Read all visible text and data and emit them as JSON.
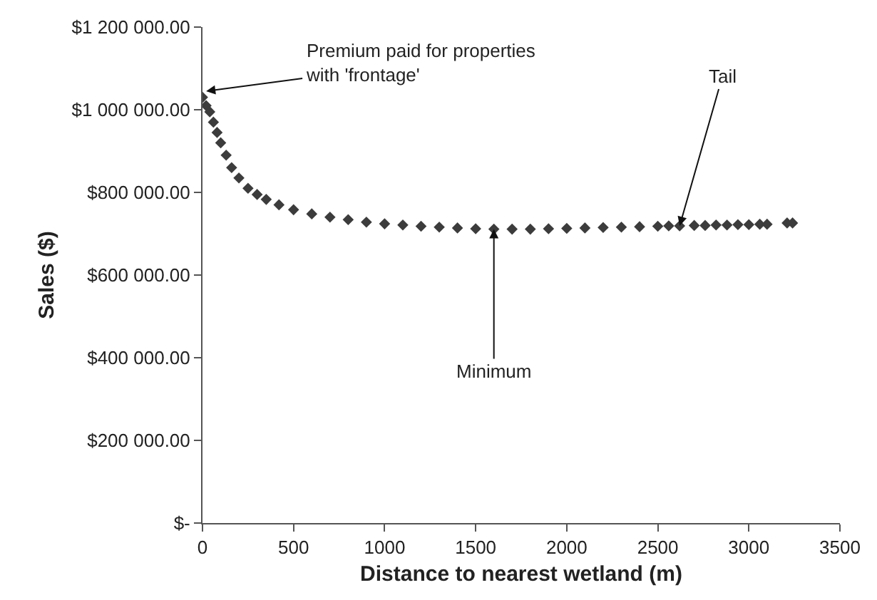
{
  "chart_data": {
    "type": "scatter",
    "xlabel": "Distance to nearest wetland (m)",
    "ylabel": "Sales ($)",
    "xlim": [
      0,
      3500
    ],
    "xticks": [
      0,
      500,
      1000,
      1500,
      2000,
      2500,
      3000,
      3500
    ],
    "ylim": [
      0,
      1200000
    ],
    "yticks": [
      {
        "value": 0,
        "label": "$-"
      },
      {
        "value": 200000,
        "label": "$200 000.00"
      },
      {
        "value": 400000,
        "label": "$400 000.00"
      },
      {
        "value": 600000,
        "label": "$600 000.00"
      },
      {
        "value": 800000,
        "label": "$800 000.00"
      },
      {
        "value": 1000000,
        "label": "$1 000 000.00"
      },
      {
        "value": 1200000,
        "label": "$1 200 000.00"
      }
    ],
    "marker": "diamond",
    "series": [
      {
        "color": "#3c3c3c",
        "x": [
          0,
          20,
          40,
          60,
          80,
          100,
          130,
          160,
          200,
          250,
          300,
          350,
          420,
          500,
          600,
          700,
          800,
          900,
          1000,
          1100,
          1200,
          1300,
          1400,
          1500,
          1600,
          1700,
          1800,
          1900,
          2000,
          2100,
          2200,
          2300,
          2400,
          2500,
          2560,
          2620,
          2700,
          2760,
          2820,
          2880,
          2940,
          3000,
          3060,
          3100,
          3210,
          3240
        ],
        "values": [
          1030000,
          1010000,
          995000,
          970000,
          945000,
          920000,
          890000,
          860000,
          835000,
          810000,
          795000,
          783000,
          770000,
          758000,
          748000,
          740000,
          734000,
          728000,
          724000,
          721000,
          718000,
          716000,
          714000,
          712000,
          711000,
          711000,
          711000,
          712000,
          713000,
          714000,
          715000,
          716000,
          717000,
          718000,
          719000,
          719000,
          720000,
          720000,
          721000,
          721000,
          722000,
          722000,
          723000,
          723000,
          726000,
          726000
        ]
      }
    ],
    "annotations": [
      {
        "text": "Premium paid for properties\nwith 'frontage'",
        "x": 20,
        "y": 1045000
      },
      {
        "text": "Tail",
        "x": 2620,
        "y": 719000
      },
      {
        "text": "Minimum",
        "x": 1600,
        "y": 711000
      }
    ]
  }
}
